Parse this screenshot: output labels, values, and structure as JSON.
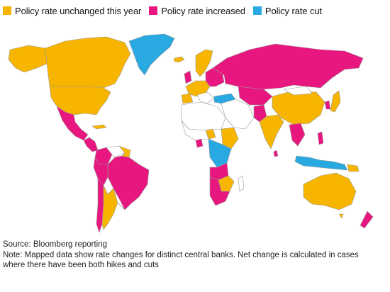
{
  "legend": {
    "items": [
      {
        "label": "Policy rate unchanged this year",
        "color": "#f7b500"
      },
      {
        "label": "Policy rate increased",
        "color": "#e8167f"
      },
      {
        "label": "Policy rate cut",
        "color": "#29a9e1"
      }
    ]
  },
  "colors": {
    "unchanged": "#f7b500",
    "increased": "#e8167f",
    "cut": "#29a9e1",
    "nodata": "#ffffff",
    "border": "#9a9a9a"
  },
  "footer": {
    "source": "Source: Bloomberg reporting",
    "note_line1": "Note: Mapped data show rate changes for distinct central banks. Net change is calculated in cases",
    "note_line2": "where there have been both hikes and cuts"
  }
}
